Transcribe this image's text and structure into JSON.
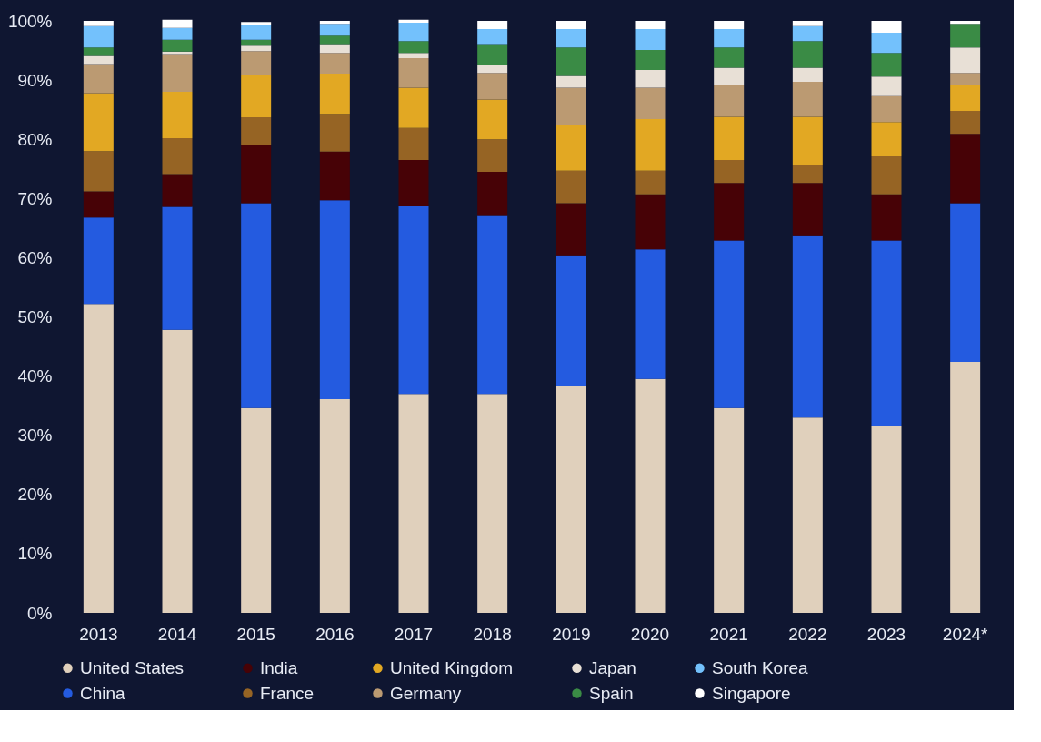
{
  "chart_data": {
    "type": "bar",
    "stacked": true,
    "categories": [
      "2013",
      "2014",
      "2015",
      "2016",
      "2017",
      "2018",
      "2019",
      "2020",
      "2021",
      "2022",
      "2023",
      "2024*"
    ],
    "series": [
      {
        "name": "United States",
        "color": "#e0d0bc",
        "values": [
          52.2,
          47.8,
          34.6,
          36.1,
          37.0,
          37.0,
          38.4,
          39.5,
          34.6,
          33.0,
          31.6,
          42.4
        ]
      },
      {
        "name": "China",
        "color": "#245be0",
        "values": [
          14.6,
          20.8,
          34.6,
          33.6,
          31.7,
          30.2,
          22.0,
          21.9,
          28.3,
          30.8,
          31.3,
          26.8
        ]
      },
      {
        "name": "India",
        "color": "#470206",
        "values": [
          4.4,
          5.5,
          9.8,
          8.2,
          7.8,
          7.3,
          8.8,
          9.3,
          9.7,
          8.8,
          7.8,
          11.7
        ]
      },
      {
        "name": "France",
        "color": "#966424",
        "values": [
          6.8,
          6.1,
          4.7,
          6.4,
          5.4,
          5.5,
          5.5,
          4.0,
          3.9,
          3.0,
          6.4,
          3.9
        ]
      },
      {
        "name": "United Kingdom",
        "color": "#e2a823",
        "values": [
          9.8,
          7.8,
          7.2,
          6.8,
          6.8,
          6.7,
          7.7,
          8.7,
          7.3,
          8.2,
          5.8,
          4.4
        ]
      },
      {
        "name": "Germany",
        "color": "#bb9a72",
        "values": [
          4.9,
          6.4,
          4.0,
          3.5,
          5.0,
          4.5,
          6.3,
          5.3,
          5.4,
          5.9,
          4.4,
          2.0
        ]
      },
      {
        "name": "Japan",
        "color": "#e8e0d6",
        "values": [
          1.4,
          0.4,
          0.9,
          1.5,
          0.9,
          1.4,
          2.0,
          3.0,
          2.9,
          2.4,
          3.3,
          4.3
        ]
      },
      {
        "name": "Spain",
        "color": "#3a8b45",
        "values": [
          1.4,
          2.0,
          1.0,
          1.4,
          2.0,
          3.5,
          4.8,
          3.4,
          3.4,
          4.5,
          4.0,
          4.0
        ]
      },
      {
        "name": "South Korea",
        "color": "#73c1fc",
        "values": [
          3.6,
          2.0,
          2.5,
          2.0,
          3.1,
          2.5,
          3.1,
          3.5,
          3.1,
          2.5,
          3.4,
          0
        ]
      },
      {
        "name": "Singapore",
        "color": "#ffffff",
        "values": [
          0.9,
          1.4,
          0.5,
          0.5,
          0.5,
          1.4,
          1.4,
          1.4,
          1.4,
          0.9,
          2.0,
          0.5
        ]
      }
    ],
    "ylim": [
      0,
      100
    ],
    "yticks": [
      {
        "value": 0,
        "label": "0%"
      },
      {
        "value": 10,
        "label": "10%"
      },
      {
        "value": 20,
        "label": "20%"
      },
      {
        "value": 30,
        "label": "30%"
      },
      {
        "value": 40,
        "label": "40%"
      },
      {
        "value": 50,
        "label": "50%"
      },
      {
        "value": 60,
        "label": "60%"
      },
      {
        "value": 70,
        "label": "70%"
      },
      {
        "value": 80,
        "label": "80%"
      },
      {
        "value": 90,
        "label": "90%"
      },
      {
        "value": 100,
        "label": "100%"
      }
    ],
    "grid": false,
    "legend": "bottom"
  }
}
